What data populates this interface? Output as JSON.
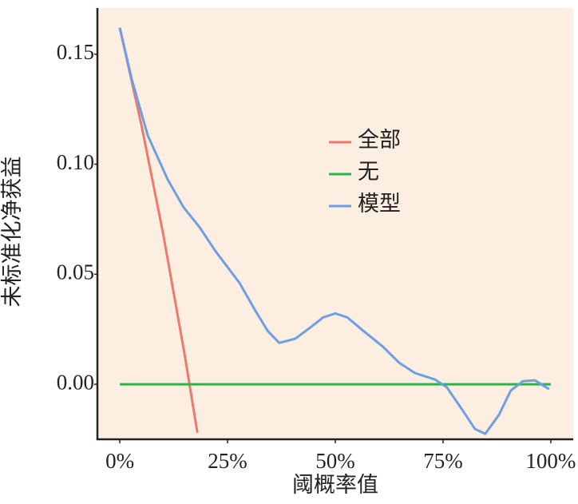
{
  "chart_data": {
    "type": "line",
    "x_label": "阈概率值",
    "y_label": "未标准化净获益",
    "xlim": [
      -5.2,
      105.2
    ],
    "ylim": [
      -0.025,
      0.171
    ],
    "xticks": [
      {
        "value": 0,
        "label": "0%"
      },
      {
        "value": 25,
        "label": "25%"
      },
      {
        "value": 50,
        "label": "50%"
      },
      {
        "value": 75,
        "label": "75%"
      },
      {
        "value": 100,
        "label": "100%"
      }
    ],
    "yticks": [
      {
        "value": 0,
        "label": "0.00"
      },
      0.05,
      {
        "value": 0.1,
        "label": "0.10"
      },
      0.15
    ],
    "grid": false,
    "legend_position": "center",
    "series": [
      {
        "name": "全部",
        "color": "#ec7a6c",
        "x": [
          0,
          5,
          10,
          15,
          18
        ],
        "values": [
          0.162,
          0.118,
          0.069,
          0.014,
          -0.022
        ]
      },
      {
        "name": "无",
        "color": "#2db34a",
        "x": [
          0,
          100
        ],
        "values": [
          0,
          0
        ]
      },
      {
        "name": "模型",
        "color": "#6f9ee3",
        "x": [
          0,
          2.8,
          6.5,
          11.1,
          14.8,
          18.5,
          22.2,
          27.8,
          31.5,
          34.3,
          37,
          40.7,
          44.4,
          47.2,
          50,
          52.8,
          56.5,
          61.1,
          64.8,
          68.5,
          73.1,
          75.9,
          79.6,
          82.4,
          84.8,
          88,
          90.7,
          93.5,
          96.3,
          99.6
        ],
        "values": [
          0.162,
          0.1384,
          0.113,
          0.0931,
          0.0804,
          0.0714,
          0.0605,
          0.046,
          0.0333,
          0.0243,
          0.0188,
          0.0207,
          0.0261,
          0.0304,
          0.0322,
          0.0304,
          0.0243,
          0.017,
          0.0098,
          0.0051,
          0.0022,
          -0.0014,
          -0.012,
          -0.0203,
          -0.0225,
          -0.0138,
          -0.0029,
          0.0014,
          0.0018,
          -0.0022
        ]
      }
    ]
  }
}
